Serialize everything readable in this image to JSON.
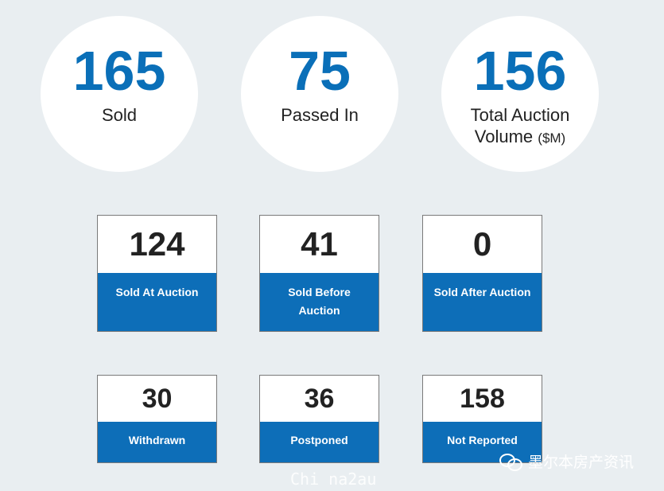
{
  "summary": [
    {
      "value": "165",
      "label": "Sold"
    },
    {
      "value": "75",
      "label": "Passed In"
    },
    {
      "value": "156",
      "label": "Total Auction Volume",
      "unit": "($M)"
    }
  ],
  "cards": [
    {
      "value": "124",
      "label": "Sold At Auction"
    },
    {
      "value": "41",
      "label": "Sold Before Auction"
    },
    {
      "value": "0",
      "label": "Sold After Auction"
    },
    {
      "value": "30",
      "label": "Withdrawn"
    },
    {
      "value": "36",
      "label": "Postponed"
    },
    {
      "value": "158",
      "label": "Not Reported"
    }
  ],
  "watermark": {
    "account": "墨尔本房产资讯",
    "site": "Chi na2au"
  },
  "colors": {
    "accent": "#0a6fb8",
    "card_blue": "#0d6eb8",
    "background": "#e9eef1"
  }
}
